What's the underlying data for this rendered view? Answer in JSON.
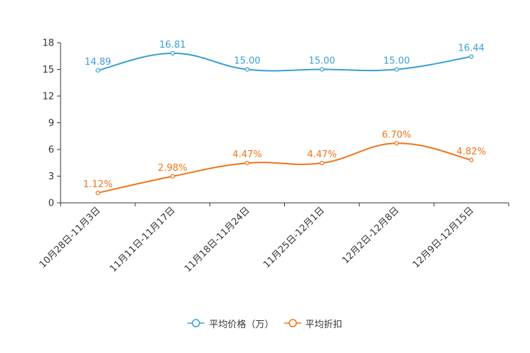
{
  "chart_data": {
    "type": "line",
    "title": "",
    "xlabel": "",
    "ylabel": "",
    "categories": [
      "10月28日-11月3日",
      "11月11日-11月17日",
      "11月18日-11月24日",
      "11月25日-12月1日",
      "12月2日-12月8日",
      "12月9日-12月15日"
    ],
    "ylim": [
      0,
      18
    ],
    "yticks": [
      0,
      3,
      6,
      9,
      12,
      15,
      18
    ],
    "grid": false,
    "legend_position": "bottom",
    "series": [
      {
        "name": "平均价格（万）",
        "color": "#3a9fd6",
        "values": [
          14.89,
          16.81,
          15.0,
          15.0,
          15.0,
          16.44
        ],
        "labels": [
          "14.89",
          "16.81",
          "15.00",
          "15.00",
          "15.00",
          "16.44"
        ]
      },
      {
        "name": "平均折扣",
        "color": "#f07419",
        "values": [
          1.12,
          2.98,
          4.47,
          4.47,
          6.7,
          4.82
        ],
        "labels": [
          "1.12%",
          "2.98%",
          "4.47%",
          "4.47%",
          "6.70%",
          "4.82%"
        ]
      }
    ]
  }
}
